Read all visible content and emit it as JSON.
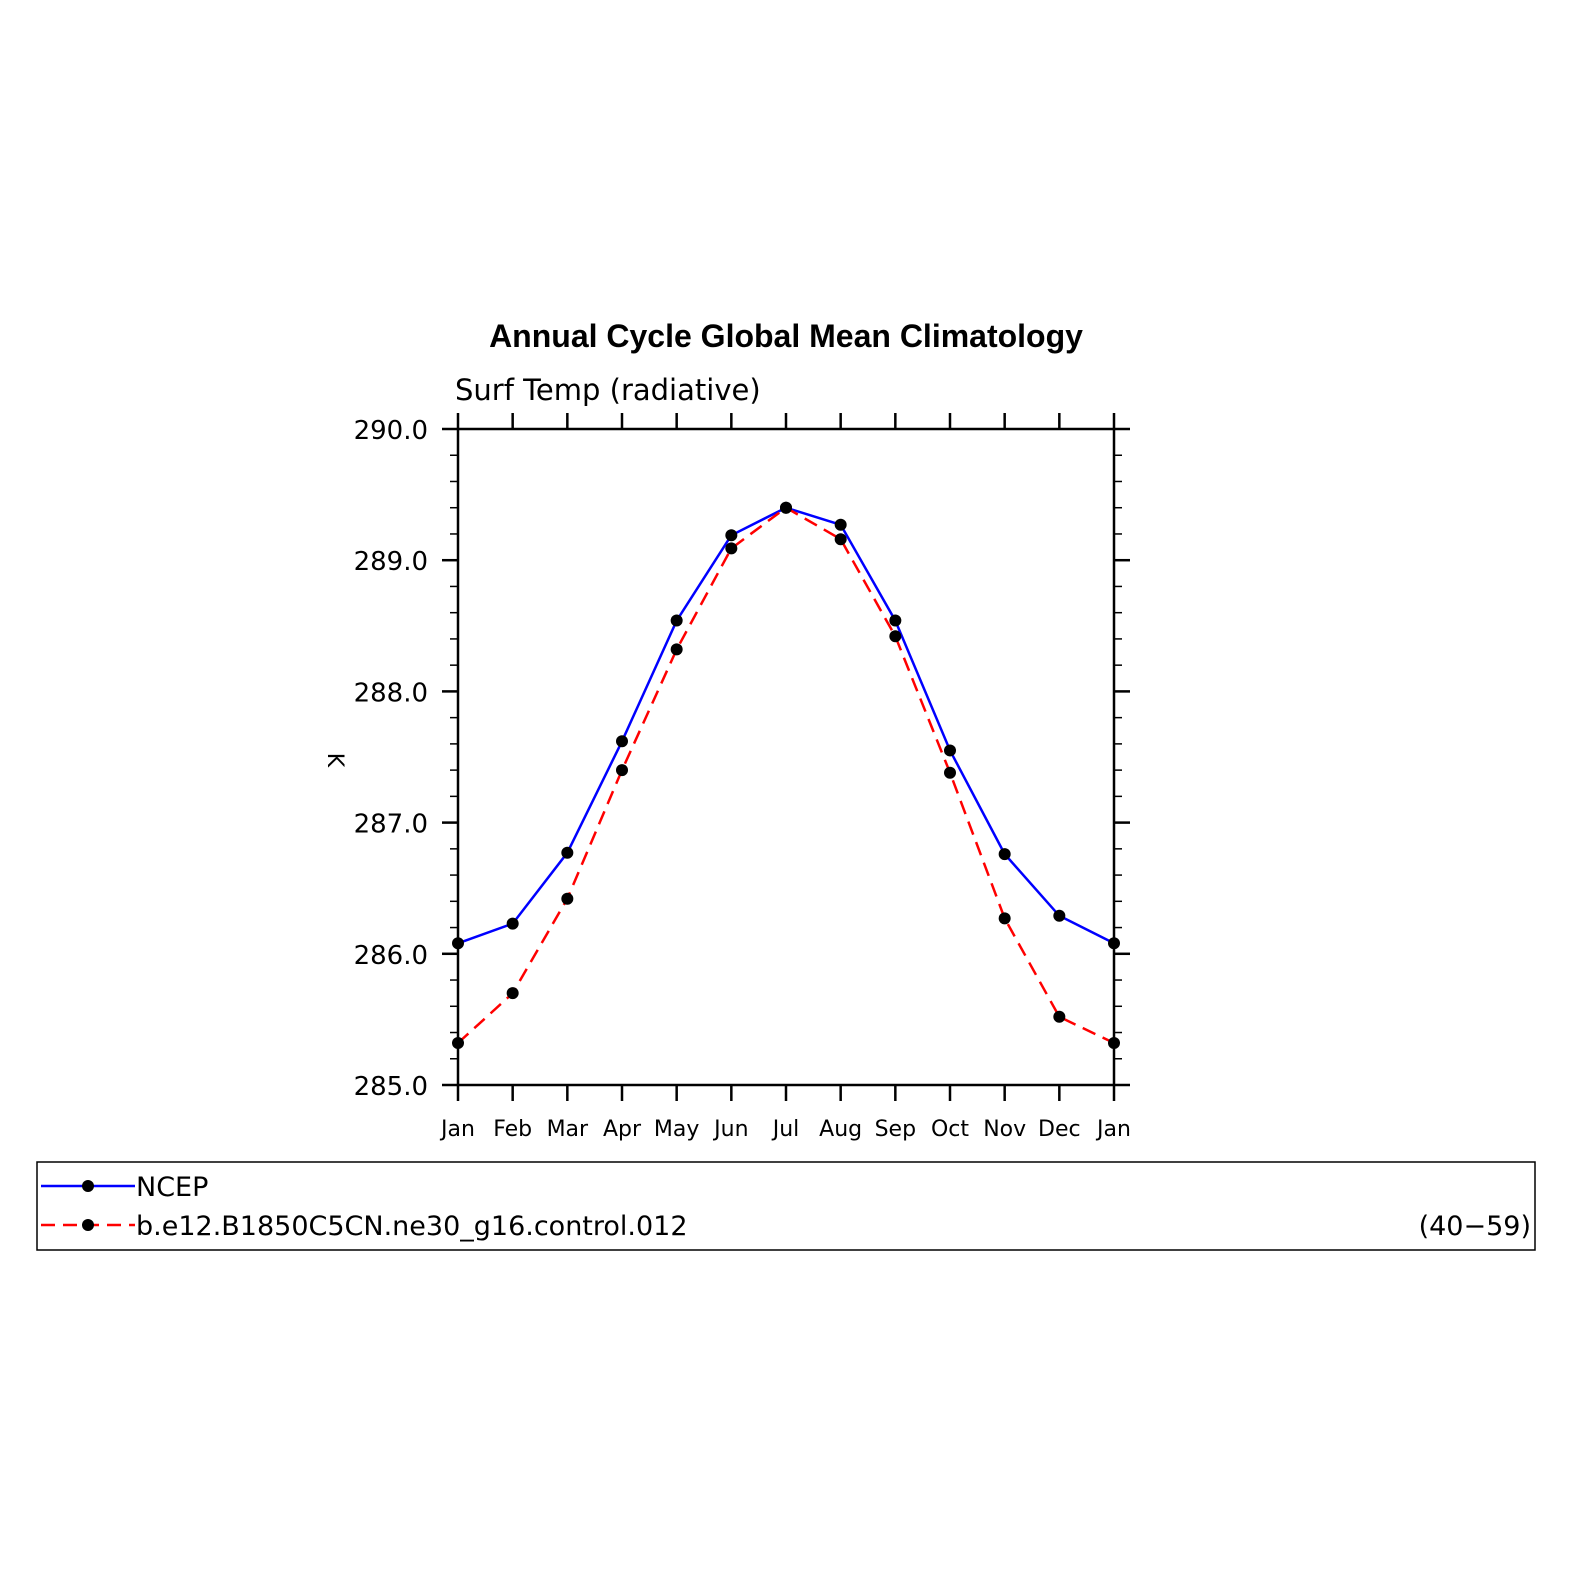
{
  "chart_data": {
    "type": "line",
    "title": "Annual Cycle Global Mean Climatology",
    "subtitle": "Surf Temp (radiative)",
    "xlabel": "",
    "ylabel": "K",
    "ylim": [
      285.0,
      290.0
    ],
    "yticks": [
      "285.0",
      "286.0",
      "287.0",
      "288.0",
      "289.0",
      "290.0"
    ],
    "categories": [
      "Jan",
      "Feb",
      "Mar",
      "Apr",
      "May",
      "Jun",
      "Jul",
      "Aug",
      "Sep",
      "Oct",
      "Nov",
      "Dec",
      "Jan"
    ],
    "grid": false,
    "legend_position": "bottom",
    "legend_note": "(40−59)",
    "series": [
      {
        "name": "NCEP",
        "color": "#0000ff",
        "dash": "solid",
        "values": [
          286.08,
          286.23,
          286.77,
          287.62,
          288.54,
          289.19,
          289.4,
          289.27,
          288.54,
          287.55,
          286.76,
          286.29,
          286.08
        ]
      },
      {
        "name": "b.e12.B1850C5CN.ne30_g16.control.012",
        "color": "#ff0000",
        "dash": "dashed",
        "values": [
          285.32,
          285.7,
          286.42,
          287.4,
          288.32,
          289.09,
          289.4,
          289.16,
          288.42,
          287.38,
          286.27,
          285.52,
          285.32
        ]
      }
    ]
  }
}
